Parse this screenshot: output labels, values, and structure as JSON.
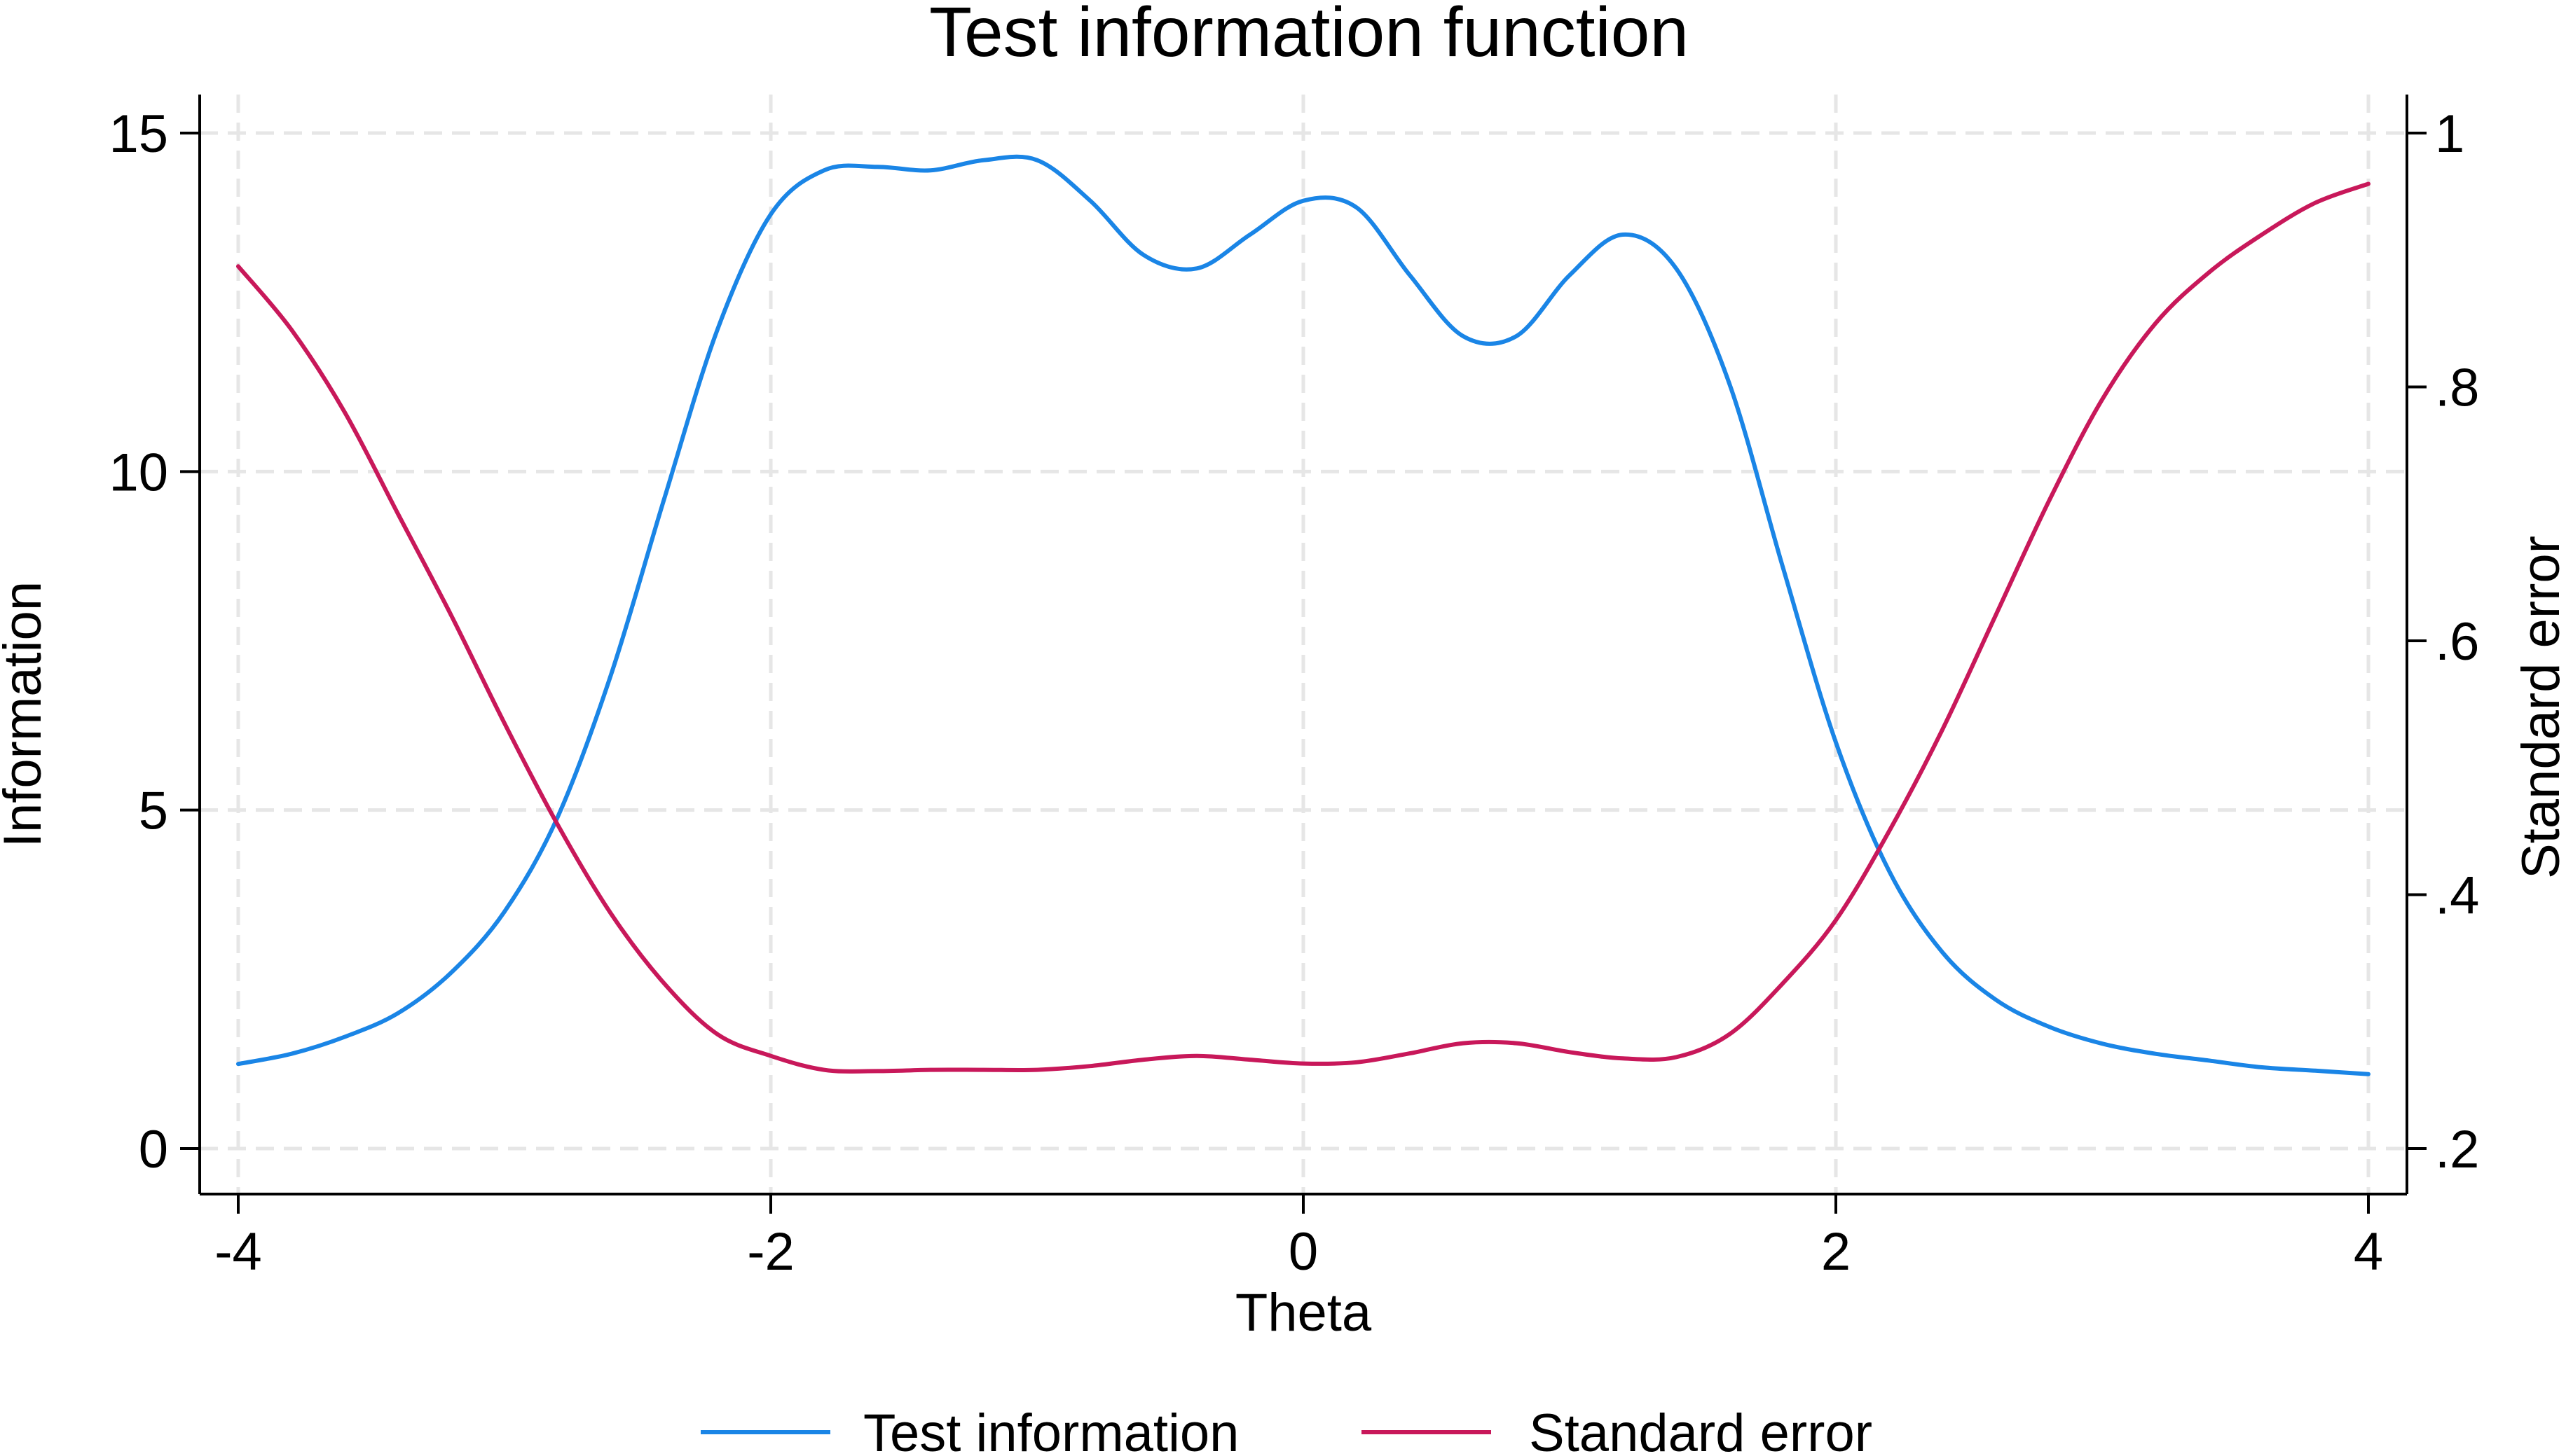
{
  "chart_data": {
    "type": "line",
    "title": "Test information function",
    "xlabel": "Theta",
    "ylabel": "Information",
    "y2label": "Standard error",
    "xlim": [
      -4,
      4
    ],
    "ylim": [
      0,
      15
    ],
    "y2lim": [
      0.2,
      1.0
    ],
    "x_ticks": [
      -4,
      -2,
      0,
      2,
      4
    ],
    "x_tick_labels": [
      "-4",
      "-2",
      "0",
      "2",
      "4"
    ],
    "y_ticks": [
      0,
      5,
      10,
      15
    ],
    "y_tick_labels": [
      "0",
      "5",
      "10",
      "15"
    ],
    "y2_ticks": [
      0.2,
      0.4,
      0.6,
      0.8,
      1.0
    ],
    "y2_tick_labels": [
      ".2",
      ".4",
      ".6",
      ".8",
      "1"
    ],
    "grid": true,
    "legend_position": "bottom",
    "series": [
      {
        "name": "Test information",
        "axis": "left",
        "color": "#1a85e6",
        "x": [
          -4,
          -3.8,
          -3.6,
          -3.4,
          -3.2,
          -3.0,
          -2.8,
          -2.6,
          -2.4,
          -2.2,
          -2.0,
          -1.8,
          -1.6,
          -1.4,
          -1.2,
          -1.0,
          -0.8,
          -0.6,
          -0.4,
          -0.2,
          0.0,
          0.2,
          0.4,
          0.6,
          0.8,
          1.0,
          1.2,
          1.4,
          1.6,
          1.8,
          2.0,
          2.2,
          2.4,
          2.6,
          2.8,
          3.0,
          3.2,
          3.4,
          3.6,
          3.8,
          4.0
        ],
        "values": [
          1.25,
          1.4,
          1.65,
          2.0,
          2.6,
          3.5,
          4.9,
          7.0,
          9.6,
          12.1,
          13.8,
          14.45,
          14.5,
          14.45,
          14.6,
          14.6,
          14.0,
          13.2,
          13.0,
          13.5,
          14.0,
          13.9,
          12.9,
          12.0,
          12.0,
          12.9,
          13.5,
          13.0,
          11.3,
          8.6,
          6.0,
          4.1,
          2.9,
          2.2,
          1.8,
          1.55,
          1.4,
          1.3,
          1.2,
          1.15,
          1.1
        ]
      },
      {
        "name": "Standard error",
        "axis": "right",
        "color": "#c8185a",
        "x": [
          -4,
          -3.8,
          -3.6,
          -3.4,
          -3.2,
          -3.0,
          -2.8,
          -2.6,
          -2.4,
          -2.2,
          -2.0,
          -1.8,
          -1.6,
          -1.4,
          -1.2,
          -1.0,
          -0.8,
          -0.6,
          -0.4,
          -0.2,
          0.0,
          0.2,
          0.4,
          0.6,
          0.8,
          1.0,
          1.2,
          1.4,
          1.6,
          1.8,
          2.0,
          2.2,
          2.4,
          2.6,
          2.8,
          3.0,
          3.2,
          3.4,
          3.6,
          3.8,
          4.0
        ],
        "values": [
          0.895,
          0.845,
          0.78,
          0.7,
          0.62,
          0.535,
          0.455,
          0.385,
          0.33,
          0.29,
          0.273,
          0.262,
          0.261,
          0.262,
          0.262,
          0.262,
          0.265,
          0.27,
          0.273,
          0.27,
          0.267,
          0.268,
          0.275,
          0.283,
          0.283,
          0.276,
          0.271,
          0.272,
          0.29,
          0.33,
          0.38,
          0.45,
          0.53,
          0.62,
          0.71,
          0.79,
          0.85,
          0.89,
          0.92,
          0.945,
          0.96
        ]
      }
    ]
  }
}
